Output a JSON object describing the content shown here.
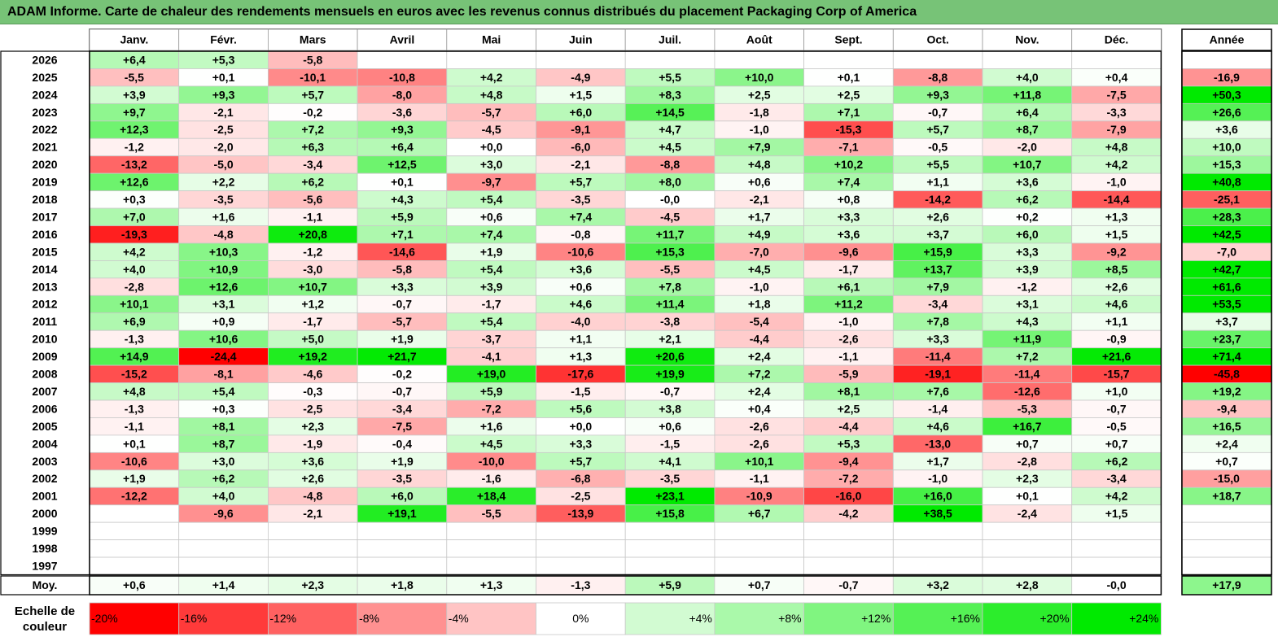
{
  "title": "ADAM Informe. Carte de chaleur des rendements mensuels en euros avec les revenus connus distribués du placement Packaging Corp of America",
  "chart_data": {
    "type": "heatmap",
    "months": [
      "Janv.",
      "Févr.",
      "Mars",
      "Avril",
      "Mai",
      "Juin",
      "Juil.",
      "Août",
      "Sept.",
      "Oct.",
      "Nov.",
      "Déc."
    ],
    "year_header": "Année",
    "avg_label": "Moy.",
    "rows": [
      {
        "year": "2026",
        "values": [
          "+6,4",
          "+5,3",
          "-5,8",
          null,
          null,
          null,
          null,
          null,
          null,
          null,
          null,
          null
        ],
        "annual": null
      },
      {
        "year": "2025",
        "values": [
          "-5,5",
          "+0,1",
          "-10,1",
          "-10,8",
          "+4,2",
          "-4,9",
          "+5,5",
          "+10,0",
          "+0,1",
          "-8,8",
          "+4,0",
          "+0,4"
        ],
        "annual": "-16,9"
      },
      {
        "year": "2024",
        "values": [
          "+3,9",
          "+9,3",
          "+5,7",
          "-8,0",
          "+4,8",
          "+1,5",
          "+8,3",
          "+2,5",
          "+2,5",
          "+9,3",
          "+11,8",
          "-7,5"
        ],
        "annual": "+50,3"
      },
      {
        "year": "2023",
        "values": [
          "+9,7",
          "-2,1",
          "-0,2",
          "-3,6",
          "-5,7",
          "+6,0",
          "+14,5",
          "-1,8",
          "+7,1",
          "-0,7",
          "+6,4",
          "-3,3"
        ],
        "annual": "+26,6"
      },
      {
        "year": "2022",
        "values": [
          "+12,3",
          "-2,5",
          "+7,2",
          "+9,3",
          "-4,5",
          "-9,1",
          "+4,7",
          "-1,0",
          "-15,3",
          "+5,7",
          "+8,7",
          "-7,9"
        ],
        "annual": "+3,6"
      },
      {
        "year": "2021",
        "values": [
          "-1,2",
          "-2,0",
          "+6,3",
          "+6,4",
          "+0,0",
          "-6,0",
          "+4,5",
          "+7,9",
          "-7,1",
          "-0,5",
          "-2,0",
          "+4,8"
        ],
        "annual": "+10,0"
      },
      {
        "year": "2020",
        "values": [
          "-13,2",
          "-5,0",
          "-3,4",
          "+12,5",
          "+3,0",
          "-2,1",
          "-8,8",
          "+4,8",
          "+10,2",
          "+5,5",
          "+10,7",
          "+4,2"
        ],
        "annual": "+15,3"
      },
      {
        "year": "2019",
        "values": [
          "+12,6",
          "+2,2",
          "+6,2",
          "+0,1",
          "-9,7",
          "+5,7",
          "+8,0",
          "+0,6",
          "+7,4",
          "+1,1",
          "+3,6",
          "-1,0"
        ],
        "annual": "+40,8"
      },
      {
        "year": "2018",
        "values": [
          "+0,3",
          "-3,5",
          "-5,6",
          "+4,3",
          "+5,4",
          "-3,5",
          "-0,0",
          "-2,1",
          "+0,8",
          "-14,2",
          "+6,2",
          "-14,4"
        ],
        "annual": "-25,1"
      },
      {
        "year": "2017",
        "values": [
          "+7,0",
          "+1,6",
          "-1,1",
          "+5,9",
          "+0,6",
          "+7,4",
          "-4,5",
          "+1,7",
          "+3,3",
          "+2,6",
          "+0,2",
          "+1,3"
        ],
        "annual": "+28,3"
      },
      {
        "year": "2016",
        "values": [
          "-19,3",
          "-4,8",
          "+20,8",
          "+7,1",
          "+7,4",
          "-0,8",
          "+11,7",
          "+4,9",
          "+3,6",
          "+3,7",
          "+6,0",
          "+1,5"
        ],
        "annual": "+42,5"
      },
      {
        "year": "2015",
        "values": [
          "+4,2",
          "+10,3",
          "-1,2",
          "-14,6",
          "+1,9",
          "-10,6",
          "+15,3",
          "-7,0",
          "-9,6",
          "+15,9",
          "+3,3",
          "-9,2"
        ],
        "annual": "-7,0"
      },
      {
        "year": "2014",
        "values": [
          "+4,0",
          "+10,9",
          "-3,0",
          "-5,8",
          "+5,4",
          "+3,6",
          "-5,5",
          "+4,5",
          "-1,7",
          "+13,7",
          "+3,9",
          "+8,5"
        ],
        "annual": "+42,7"
      },
      {
        "year": "2013",
        "values": [
          "-2,8",
          "+12,6",
          "+10,7",
          "+3,3",
          "+3,9",
          "+0,6",
          "+7,8",
          "-1,0",
          "+6,1",
          "+7,9",
          "-1,2",
          "+2,6"
        ],
        "annual": "+61,6"
      },
      {
        "year": "2012",
        "values": [
          "+10,1",
          "+3,1",
          "+1,2",
          "-0,7",
          "-1,7",
          "+4,6",
          "+11,4",
          "+1,8",
          "+11,2",
          "-3,4",
          "+3,1",
          "+4,6"
        ],
        "annual": "+53,5"
      },
      {
        "year": "2011",
        "values": [
          "+6,9",
          "+0,9",
          "-1,7",
          "-5,7",
          "+5,4",
          "-4,0",
          "-3,8",
          "-5,4",
          "-1,0",
          "+7,8",
          "+4,3",
          "+1,1"
        ],
        "annual": "+3,7"
      },
      {
        "year": "2010",
        "values": [
          "-1,3",
          "+10,6",
          "+5,0",
          "+1,9",
          "-3,7",
          "+1,1",
          "+2,1",
          "-4,4",
          "-2,6",
          "+3,3",
          "+11,9",
          "-0,9"
        ],
        "annual": "+23,7"
      },
      {
        "year": "2009",
        "values": [
          "+14,9",
          "-24,4",
          "+19,2",
          "+21,7",
          "-4,1",
          "+1,3",
          "+20,6",
          "+2,4",
          "-1,1",
          "-11,4",
          "+7,2",
          "+21,6"
        ],
        "annual": "+71,4"
      },
      {
        "year": "2008",
        "values": [
          "-15,2",
          "-8,1",
          "-4,6",
          "-0,2",
          "+19,0",
          "-17,6",
          "+19,9",
          "+7,2",
          "-5,9",
          "-19,1",
          "-11,4",
          "-15,7"
        ],
        "annual": "-45,8"
      },
      {
        "year": "2007",
        "values": [
          "+4,8",
          "+5,4",
          "-0,3",
          "-0,7",
          "+5,9",
          "-1,5",
          "-0,7",
          "+2,4",
          "+8,1",
          "+7,6",
          "-12,6",
          "+1,0"
        ],
        "annual": "+19,2"
      },
      {
        "year": "2006",
        "values": [
          "-1,3",
          "+0,3",
          "-2,5",
          "-3,4",
          "-7,2",
          "+5,6",
          "+3,8",
          "+0,4",
          "+2,5",
          "-1,4",
          "-5,3",
          "-0,7"
        ],
        "annual": "-9,4"
      },
      {
        "year": "2005",
        "values": [
          "-1,1",
          "+8,1",
          "+2,3",
          "-7,5",
          "+1,6",
          "+0,0",
          "+0,6",
          "-2,6",
          "-4,4",
          "+4,6",
          "+16,7",
          "-0,5"
        ],
        "annual": "+16,5"
      },
      {
        "year": "2004",
        "values": [
          "+0,1",
          "+8,7",
          "-1,9",
          "-0,4",
          "+4,5",
          "+3,3",
          "-1,5",
          "-2,6",
          "+5,3",
          "-13,0",
          "+0,7",
          "+0,7"
        ],
        "annual": "+2,4"
      },
      {
        "year": "2003",
        "values": [
          "-10,6",
          "+3,0",
          "+3,6",
          "+1,9",
          "-10,0",
          "+5,7",
          "+4,1",
          "+10,1",
          "-9,4",
          "+1,7",
          "-2,8",
          "+6,2"
        ],
        "annual": "+0,7"
      },
      {
        "year": "2002",
        "values": [
          "+1,9",
          "+6,2",
          "+2,6",
          "-3,5",
          "-1,6",
          "-6,8",
          "-3,5",
          "-1,1",
          "-7,2",
          "-1,0",
          "+2,3",
          "-3,4"
        ],
        "annual": "-15,0"
      },
      {
        "year": "2001",
        "values": [
          "-12,2",
          "+4,0",
          "-4,8",
          "+6,0",
          "+18,4",
          "-2,5",
          "+23,1",
          "-10,9",
          "-16,0",
          "+16,0",
          "+0,1",
          "+4,2"
        ],
        "annual": "+18,7"
      },
      {
        "year": "2000",
        "values": [
          null,
          "-9,6",
          "-2,1",
          "+19,1",
          "-5,5",
          "-13,9",
          "+15,8",
          "+6,7",
          "-4,2",
          "+38,5",
          "-2,4",
          "+1,5"
        ],
        "annual": null
      },
      {
        "year": "1999",
        "values": [
          null,
          null,
          null,
          null,
          null,
          null,
          null,
          null,
          null,
          null,
          null,
          null
        ],
        "annual": null
      },
      {
        "year": "1998",
        "values": [
          null,
          null,
          null,
          null,
          null,
          null,
          null,
          null,
          null,
          null,
          null,
          null
        ],
        "annual": null
      },
      {
        "year": "1997",
        "values": [
          null,
          null,
          null,
          null,
          null,
          null,
          null,
          null,
          null,
          null,
          null,
          null
        ],
        "annual": null
      }
    ],
    "averages": {
      "values": [
        "+0,6",
        "+1,4",
        "+2,3",
        "+1,8",
        "+1,3",
        "-1,3",
        "+5,9",
        "+0,7",
        "-0,7",
        "+3,2",
        "+2,8",
        "-0,0"
      ],
      "annual": "+17,9"
    },
    "color_scale": {
      "label": "Echelle de couleur",
      "stops": [
        {
          "label": "-20%",
          "value": -20,
          "color": "#ff0000"
        },
        {
          "label": "-16%",
          "value": -16,
          "color": "#ff3a3a"
        },
        {
          "label": "-12%",
          "value": -12,
          "color": "#ff6161"
        },
        {
          "label": "-8%",
          "value": -8,
          "color": "#ff9191"
        },
        {
          "label": "-4%",
          "value": -4,
          "color": "#ffc4c4"
        },
        {
          "label": "0%",
          "value": 0,
          "color": "#ffffff"
        },
        {
          "label": "+4%",
          "value": 4,
          "color": "#d2fbd2"
        },
        {
          "label": "+8%",
          "value": 8,
          "color": "#aaf9aa"
        },
        {
          "label": "+12%",
          "value": 12,
          "color": "#80f580"
        },
        {
          "label": "+16%",
          "value": 16,
          "color": "#55f155"
        },
        {
          "label": "+20%",
          "value": 20,
          "color": "#2ced2c"
        },
        {
          "label": "+24%",
          "value": 24,
          "color": "#00ea00"
        }
      ]
    }
  }
}
